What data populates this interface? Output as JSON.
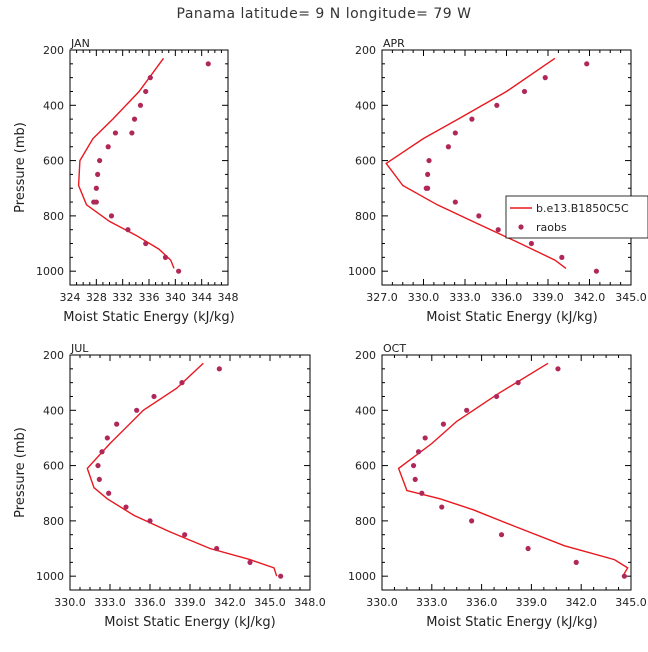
{
  "title": "Panama  latitude= 9 N longitude= 79 W",
  "colors": {
    "model": "#e8181f",
    "obs": "#b0285a",
    "axis": "#000000"
  },
  "legend": {
    "model_label": "b.e13.B1850C5C",
    "obs_label": "raobs"
  },
  "chart_data": [
    {
      "type": "line",
      "panel": "JAN",
      "xlabel": "Moist Static Energy (kJ/kg)",
      "ylabel": "Pressure (mb)",
      "xlim": [
        324,
        348
      ],
      "xticks": [
        324,
        328,
        332,
        336,
        340,
        344,
        348
      ],
      "xtick_labels": [
        "324",
        "328",
        "332",
        "336",
        "340",
        "344",
        "348"
      ],
      "ylim": [
        200,
        1050
      ],
      "yticks": [
        200,
        400,
        600,
        800,
        1000
      ],
      "ytick_labels": [
        "200",
        "400",
        "600",
        "800",
        "1000"
      ],
      "y_inverted": true,
      "model": {
        "x": [
          338.2,
          334.5,
          330.5,
          327.5,
          325.5,
          325.3,
          326.5,
          330.0,
          334.0,
          337.5,
          339.3,
          339.8
        ],
        "y": [
          230,
          350,
          450,
          520,
          600,
          690,
          760,
          820,
          870,
          920,
          960,
          990
        ]
      },
      "obs": {
        "x": [
          345,
          336.2,
          335.5,
          334.7,
          333.8,
          333.4,
          330.9,
          329.8,
          328.5,
          328.2,
          328.0,
          327.6,
          328.0,
          330.3,
          332.8,
          335.5,
          338.5,
          340.5
        ],
        "y": [
          250,
          300,
          350,
          400,
          450,
          500,
          500,
          550,
          600,
          650,
          700,
          750,
          750,
          800,
          850,
          900,
          950,
          1000
        ]
      }
    },
    {
      "type": "line",
      "panel": "APR",
      "xlabel": "Moist Static Energy (kJ/kg)",
      "ylabel": "",
      "xlim": [
        327,
        345
      ],
      "xticks": [
        327,
        330,
        333,
        336,
        339,
        342,
        345
      ],
      "xtick_labels": [
        "327.0",
        "330.0",
        "333.0",
        "336.0",
        "339.0",
        "342.0",
        "345.0"
      ],
      "ylim": [
        200,
        1050
      ],
      "yticks": [
        200,
        400,
        600,
        800,
        1000
      ],
      "ytick_labels": [
        "200",
        "400",
        "600",
        "800",
        "1000"
      ],
      "y_inverted": true,
      "model": {
        "x": [
          339.5,
          336.0,
          332.5,
          330.0,
          328.5,
          327.3,
          328.5,
          331.0,
          334.0,
          337.0,
          339.5,
          340.3
        ],
        "y": [
          230,
          350,
          450,
          520,
          570,
          610,
          690,
          760,
          830,
          900,
          960,
          990
        ]
      },
      "obs": {
        "x": [
          341.8,
          338.8,
          337.3,
          335.3,
          333.5,
          332.3,
          331.8,
          330.4,
          330.3,
          330.2,
          330.3,
          332.3,
          334.0,
          335.4,
          337.8,
          340.0,
          342.5
        ],
        "y": [
          250,
          300,
          350,
          400,
          450,
          500,
          550,
          600,
          650,
          700,
          700,
          750,
          800,
          850,
          900,
          950,
          1000
        ]
      }
    },
    {
      "type": "line",
      "panel": "JUL",
      "xlabel": "Moist Static Energy (kJ/kg)",
      "ylabel": "Pressure (mb)",
      "xlim": [
        330,
        348
      ],
      "xticks": [
        330,
        333,
        336,
        339,
        342,
        345,
        348
      ],
      "xtick_labels": [
        "330.0",
        "333.0",
        "336.0",
        "339.0",
        "342.0",
        "345.0",
        "348.0"
      ],
      "ylim": [
        200,
        1050
      ],
      "yticks": [
        200,
        400,
        600,
        800,
        1000
      ],
      "ytick_labels": [
        "200",
        "400",
        "600",
        "800",
        "1000"
      ],
      "y_inverted": true,
      "model": {
        "x": [
          340.0,
          338.0,
          335.5,
          333.0,
          331.3,
          331.8,
          332.8,
          334.8,
          337.5,
          340.5,
          343.5,
          345.3,
          345.5
        ],
        "y": [
          230,
          320,
          400,
          520,
          610,
          680,
          720,
          780,
          840,
          900,
          940,
          970,
          1000
        ]
      },
      "obs": {
        "x": [
          341.2,
          338.4,
          336.3,
          335.0,
          333.5,
          332.8,
          332.4,
          332.1,
          332.2,
          332.9,
          334.2,
          336.0,
          338.6,
          341.0,
          343.5,
          345.8
        ],
        "y": [
          250,
          300,
          350,
          400,
          450,
          500,
          550,
          600,
          650,
          700,
          750,
          800,
          850,
          900,
          950,
          1000
        ]
      }
    },
    {
      "type": "line",
      "panel": "OCT",
      "xlabel": "Moist Static Energy (kJ/kg)",
      "ylabel": "",
      "xlim": [
        330,
        345
      ],
      "xticks": [
        330,
        333,
        336,
        339,
        342,
        345
      ],
      "xtick_labels": [
        "330.0",
        "333.0",
        "336.0",
        "339.0",
        "342.0",
        "345.0"
      ],
      "ylim": [
        200,
        1050
      ],
      "yticks": [
        200,
        400,
        600,
        800,
        1000
      ],
      "ytick_labels": [
        "200",
        "400",
        "600",
        "800",
        "1000"
      ],
      "y_inverted": true,
      "model": {
        "x": [
          340.0,
          337.0,
          334.5,
          333.0,
          331.0,
          331.5,
          333.5,
          335.5,
          338.0,
          341.0,
          344.0,
          344.8,
          344.5
        ],
        "y": [
          230,
          340,
          440,
          520,
          610,
          690,
          720,
          760,
          820,
          890,
          940,
          970,
          1000
        ]
      },
      "obs": {
        "x": [
          340.6,
          338.2,
          336.9,
          335.1,
          333.7,
          332.6,
          332.2,
          331.9,
          332.0,
          332.4,
          333.6,
          335.4,
          337.2,
          338.8,
          341.7,
          344.6
        ],
        "y": [
          250,
          300,
          350,
          400,
          450,
          500,
          550,
          600,
          650,
          700,
          750,
          800,
          850,
          900,
          950,
          1000
        ]
      }
    }
  ]
}
